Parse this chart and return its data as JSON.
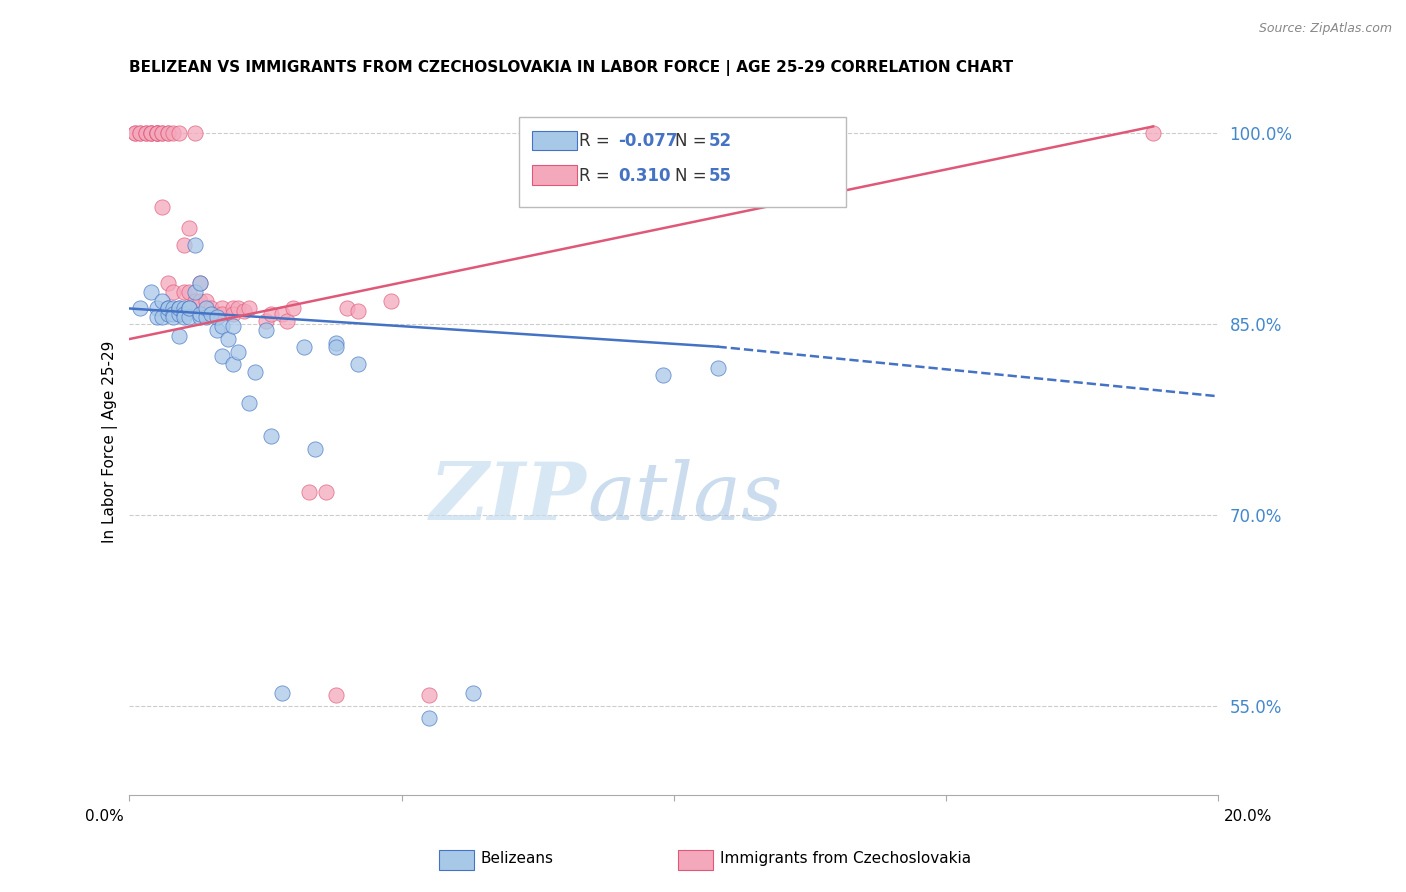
{
  "title": "BELIZEAN VS IMMIGRANTS FROM CZECHOSLOVAKIA IN LABOR FORCE | AGE 25-29 CORRELATION CHART",
  "source": "Source: ZipAtlas.com",
  "ylabel": "In Labor Force | Age 25-29",
  "xmin": 0.0,
  "xmax": 0.2,
  "ymin": 0.48,
  "ymax": 1.035,
  "legend_r_blue": "-0.077",
  "legend_n_blue": "52",
  "legend_r_pink": "0.310",
  "legend_n_pink": "55",
  "blue_color": "#a8c8e8",
  "pink_color": "#f4a8bc",
  "blue_line_color": "#4472c4",
  "pink_line_color": "#e05878",
  "blue_line_x0": 0.0,
  "blue_line_y0": 0.862,
  "blue_line_x1": 0.108,
  "blue_line_y1": 0.832,
  "blue_line_dash_x1": 0.2,
  "blue_line_dash_y1": 0.793,
  "pink_line_x0": 0.0,
  "pink_line_y0": 0.838,
  "pink_line_x1": 0.188,
  "pink_line_y1": 1.005,
  "blue_scatter_x": [
    0.002,
    0.004,
    0.005,
    0.005,
    0.006,
    0.006,
    0.007,
    0.007,
    0.007,
    0.008,
    0.008,
    0.008,
    0.009,
    0.009,
    0.009,
    0.009,
    0.01,
    0.01,
    0.01,
    0.011,
    0.011,
    0.011,
    0.012,
    0.012,
    0.013,
    0.013,
    0.013,
    0.014,
    0.014,
    0.015,
    0.016,
    0.016,
    0.017,
    0.017,
    0.018,
    0.019,
    0.019,
    0.02,
    0.022,
    0.023,
    0.025,
    0.026,
    0.028,
    0.032,
    0.034,
    0.038,
    0.038,
    0.042,
    0.055,
    0.063,
    0.098,
    0.108
  ],
  "blue_scatter_y": [
    0.862,
    0.875,
    0.862,
    0.855,
    0.868,
    0.855,
    0.862,
    0.858,
    0.862,
    0.862,
    0.858,
    0.855,
    0.862,
    0.858,
    0.84,
    0.862,
    0.862,
    0.858,
    0.855,
    0.862,
    0.855,
    0.862,
    0.875,
    0.912,
    0.855,
    0.858,
    0.882,
    0.855,
    0.862,
    0.858,
    0.845,
    0.855,
    0.848,
    0.825,
    0.838,
    0.818,
    0.848,
    0.828,
    0.788,
    0.812,
    0.845,
    0.762,
    0.56,
    0.832,
    0.752,
    0.835,
    0.832,
    0.818,
    0.54,
    0.56,
    0.81,
    0.815
  ],
  "pink_scatter_x": [
    0.001,
    0.001,
    0.002,
    0.002,
    0.003,
    0.003,
    0.004,
    0.004,
    0.004,
    0.005,
    0.005,
    0.005,
    0.005,
    0.006,
    0.006,
    0.006,
    0.007,
    0.007,
    0.007,
    0.008,
    0.008,
    0.009,
    0.009,
    0.01,
    0.01,
    0.011,
    0.011,
    0.012,
    0.012,
    0.013,
    0.013,
    0.014,
    0.014,
    0.015,
    0.016,
    0.017,
    0.017,
    0.019,
    0.019,
    0.02,
    0.021,
    0.022,
    0.025,
    0.026,
    0.028,
    0.029,
    0.03,
    0.033,
    0.036,
    0.038,
    0.04,
    0.042,
    0.048,
    0.055,
    0.188
  ],
  "pink_scatter_y": [
    1.0,
    1.0,
    1.0,
    1.0,
    1.0,
    1.0,
    1.0,
    1.0,
    1.0,
    1.0,
    1.0,
    1.0,
    1.0,
    1.0,
    1.0,
    0.942,
    1.0,
    1.0,
    0.882,
    1.0,
    0.875,
    1.0,
    0.858,
    0.912,
    0.875,
    0.925,
    0.875,
    1.0,
    0.868,
    0.882,
    0.868,
    0.858,
    0.868,
    0.862,
    0.858,
    0.862,
    0.858,
    0.862,
    0.858,
    0.862,
    0.86,
    0.862,
    0.852,
    0.858,
    0.858,
    0.852,
    0.862,
    0.718,
    0.718,
    0.558,
    0.862,
    0.86,
    0.868,
    0.558,
    1.0
  ],
  "watermark_zip": "ZIP",
  "watermark_atlas": "atlas",
  "background_color": "#ffffff",
  "grid_color": "#cccccc",
  "ytick_vals": [
    0.55,
    0.7,
    0.85,
    1.0
  ],
  "ytick_labels": [
    "55.0%",
    "70.0%",
    "85.0%",
    "100.0%"
  ]
}
